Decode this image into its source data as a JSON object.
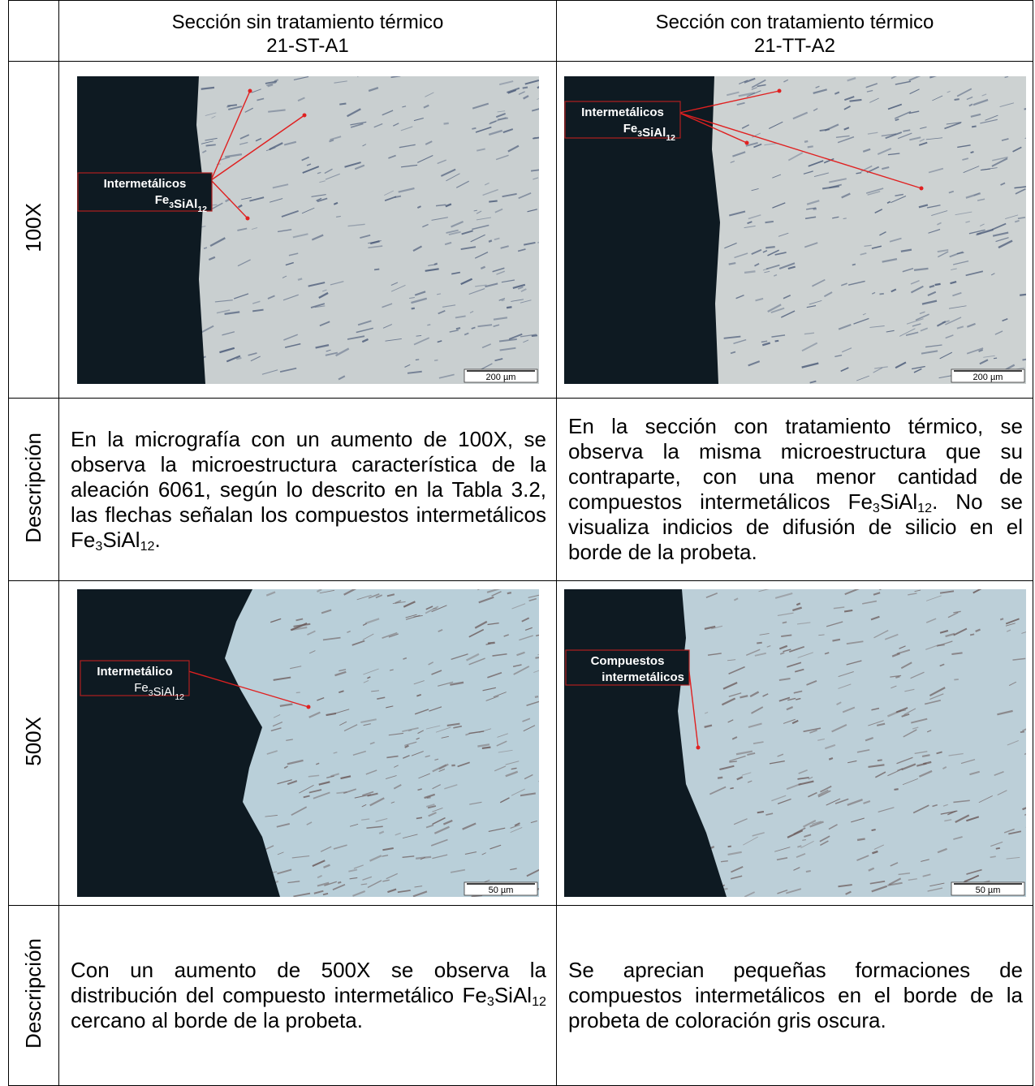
{
  "table": {
    "header": {
      "left": {
        "title": "Sección sin tratamiento térmico",
        "code": "21-ST-A1"
      },
      "right": {
        "title": "Sección con tratamiento térmico",
        "code": "21-TT-A2"
      }
    },
    "rows": [
      {
        "label": "100X",
        "left": {
          "annotation": [
            "Intermetálicos",
            [
              "Fe",
              {
                "sub": "3"
              },
              "SiAl",
              {
                "sub": "12"
              }
            ]
          ],
          "scale": "200 µm"
        },
        "right": {
          "annotation": [
            "Intermetálicos",
            [
              "Fe",
              {
                "sub": "3"
              },
              "SiAl",
              {
                "sub": "12"
              }
            ]
          ],
          "scale": "200 µm"
        }
      },
      {
        "label": "Descripción",
        "left": [
          "En la micrografía con un aumento de 100X, se observa la microestructura característica de la aleación 6061, según lo descrito en la Tabla 3.2, las flechas señalan los compuestos intermetálicos Fe",
          {
            "sub": "3"
          },
          "SiAl",
          {
            "sub": "12"
          },
          "."
        ],
        "right": [
          "En la sección con tratamiento térmico, se observa la misma microestructura que su contraparte, con una menor cantidad de compuestos intermetálicos Fe",
          {
            "sub": "3"
          },
          "SiAl",
          {
            "sub": "12"
          },
          ". No se visualiza indicios de difusión de silicio en el borde de la probeta."
        ]
      },
      {
        "label": "500X",
        "left": {
          "annotation": [
            "Intermetálico",
            [
              "Fe",
              {
                "sub": "3"
              },
              "SiAl",
              {
                "sub": "12"
              }
            ]
          ],
          "scale": "50 µm"
        },
        "right": {
          "annotation": [
            "Compuestos",
            "intermetálicos"
          ],
          "scale": "50 µm"
        }
      },
      {
        "label": "Descripción",
        "left": [
          "Con un aumento de 500X se observa la distribución del compuesto intermetálico Fe",
          {
            "sub": "3"
          },
          "SiAl",
          {
            "sub": "12"
          },
          " cercano al borde de la probeta."
        ],
        "right": [
          "Se aprecian pequeñas formaciones de compuestos intermetálicos en el borde de la probeta de coloración gris oscura."
        ]
      }
    ]
  }
}
